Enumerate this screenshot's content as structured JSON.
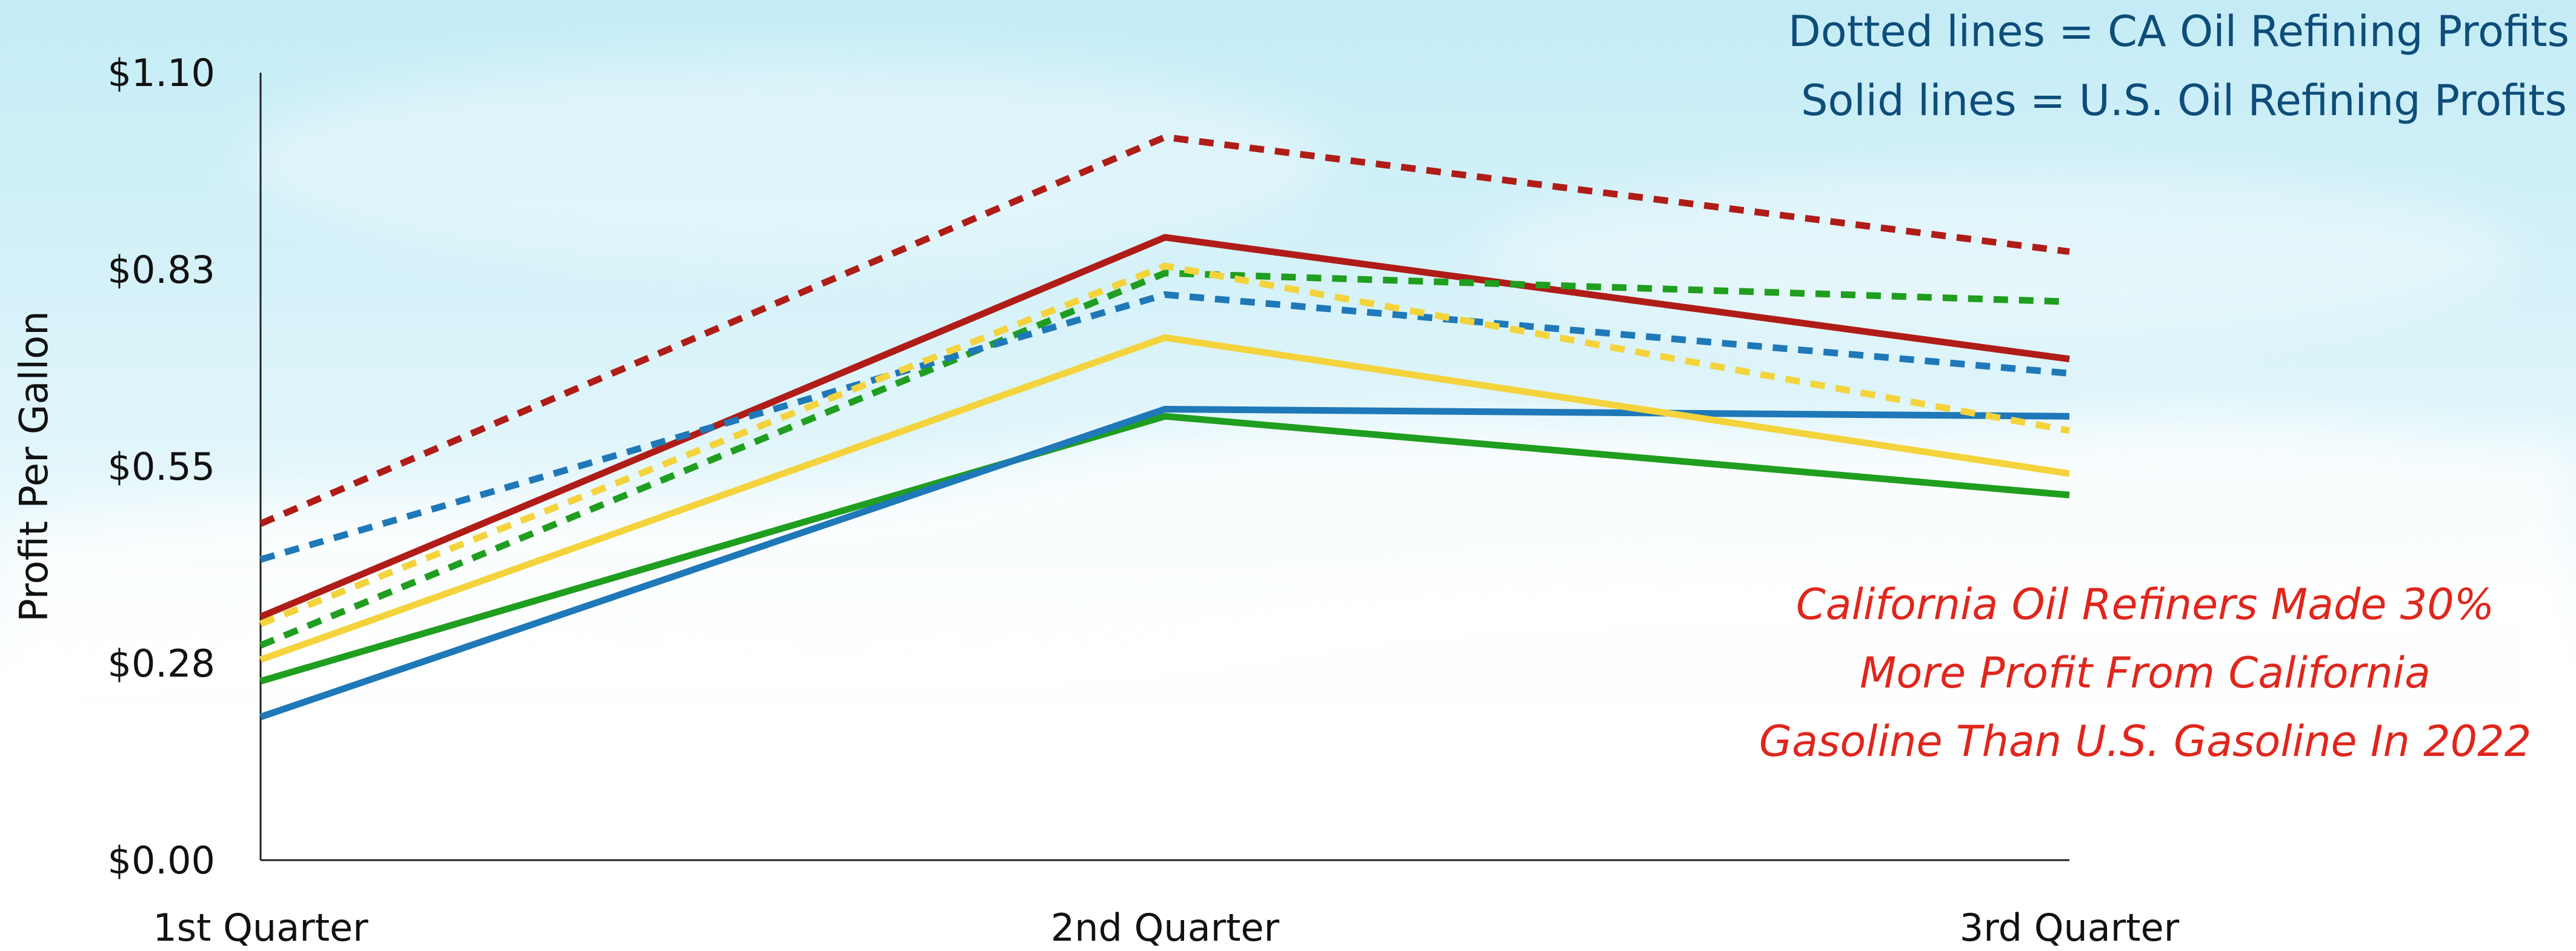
{
  "chart_data": {
    "type": "line",
    "categories": [
      "1st Quarter",
      "2nd Quarter",
      "3rd Quarter"
    ],
    "ylabel": "Profit Per Gallon",
    "xlabel": "",
    "ylim": [
      0,
      1.1
    ],
    "y_ticks": [
      "$0.00",
      "$0.28",
      "$0.55",
      "$0.83",
      "$1.10"
    ],
    "y_tick_values": [
      0,
      0.275,
      0.55,
      0.825,
      1.1
    ],
    "grid": false,
    "legend_notes": [
      "Dotted lines = CA Oil Refining Profits",
      "Solid lines = U.S. Oil Refining Profits"
    ],
    "annotation": [
      "California Oil Refiners Made 30%",
      "More Profit From California",
      "Gasoline Than U.S. Gasoline In 2022"
    ],
    "series": [
      {
        "color": "#b01c17",
        "style": "dotted",
        "values": [
          0.47,
          1.01,
          0.85
        ]
      },
      {
        "color": "#b01c17",
        "style": "solid",
        "values": [
          0.34,
          0.87,
          0.7
        ]
      },
      {
        "color": "#1f9e1f",
        "style": "dotted",
        "values": [
          0.3,
          0.82,
          0.78
        ]
      },
      {
        "color": "#1f9e1f",
        "style": "solid",
        "values": [
          0.25,
          0.62,
          0.51
        ]
      },
      {
        "color": "#1f78b8",
        "style": "dotted",
        "values": [
          0.42,
          0.79,
          0.68
        ]
      },
      {
        "color": "#1f78b8",
        "style": "solid",
        "values": [
          0.2,
          0.63,
          0.62
        ]
      },
      {
        "color": "#f4d33c",
        "style": "dotted",
        "values": [
          0.33,
          0.83,
          0.6
        ]
      },
      {
        "color": "#f4d33c",
        "style": "solid",
        "values": [
          0.28,
          0.73,
          0.54
        ]
      }
    ]
  }
}
